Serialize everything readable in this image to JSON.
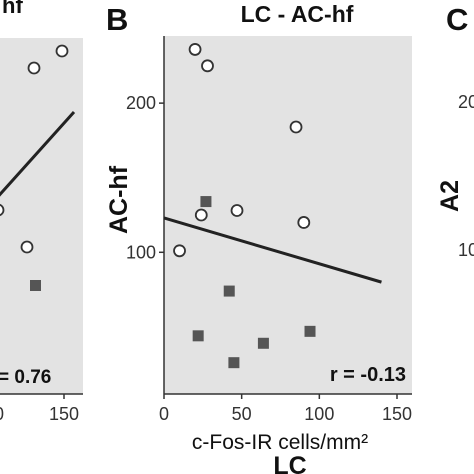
{
  "panels": {
    "left": {
      "r_label": "= 0.76",
      "x_tick_labels": [
        "0",
        "150"
      ],
      "title_fragment": "hf"
    },
    "middle_letter": "B",
    "right_letter": "C",
    "right_ylabel": "A2",
    "right_y_tick_labels": [
      "20",
      "10"
    ]
  },
  "chart_data": {
    "type": "scatter",
    "title": "LC - AC-hf",
    "xlabel_unit": "c-Fos-IR cells/mm²",
    "xlabel": "LC",
    "ylabel": "AC-hf",
    "x_ticks": [
      0,
      50,
      100,
      150
    ],
    "y_ticks": [
      100,
      200
    ],
    "xlim": [
      0,
      150
    ],
    "ylim": [
      5,
      245
    ],
    "annotation": "r = -0.13",
    "series": [
      {
        "marker": "open-circle",
        "points": [
          [
            10,
            101
          ],
          [
            20,
            236
          ],
          [
            24,
            125
          ],
          [
            28,
            225
          ],
          [
            47,
            128
          ],
          [
            85,
            184
          ],
          [
            90,
            120
          ]
        ]
      },
      {
        "marker": "filled-square",
        "points": [
          [
            27,
            134
          ],
          [
            22,
            44
          ],
          [
            42,
            74
          ],
          [
            45,
            26
          ],
          [
            64,
            39
          ],
          [
            94,
            47
          ]
        ]
      }
    ],
    "regression_line": {
      "x": [
        0,
        140
      ],
      "y": [
        123,
        80
      ]
    },
    "grid": false,
    "legend": "none"
  }
}
